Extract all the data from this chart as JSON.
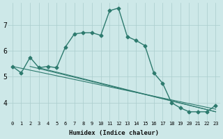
{
  "xlabel": "Humidex (Indice chaleur)",
  "x_ticks": [
    0,
    1,
    2,
    3,
    4,
    5,
    6,
    7,
    8,
    9,
    10,
    11,
    12,
    13,
    14,
    15,
    16,
    17,
    18,
    19,
    20,
    21,
    22,
    23
  ],
  "y_ticks": [
    4,
    5,
    6,
    7
  ],
  "xlim": [
    -0.5,
    23.5
  ],
  "ylim": [
    3.3,
    7.85
  ],
  "bg_color": "#cde8e8",
  "grid_color": "#aacccc",
  "line_color": "#2d7a6e",
  "main_series": [
    5.4,
    5.15,
    5.75,
    5.35,
    5.4,
    5.35,
    6.15,
    6.65,
    6.7,
    6.7,
    6.6,
    7.55,
    7.65,
    6.55,
    6.4,
    6.2,
    5.15,
    4.75,
    4.0,
    3.8,
    3.65,
    3.65,
    3.65,
    3.9
  ],
  "line1_x": [
    0,
    23
  ],
  "line1_y": [
    5.4,
    3.75
  ],
  "line2_x": [
    2,
    23
  ],
  "line2_y": [
    5.4,
    3.65
  ],
  "line3_x": [
    3,
    23
  ],
  "line3_y": [
    5.35,
    3.65
  ]
}
